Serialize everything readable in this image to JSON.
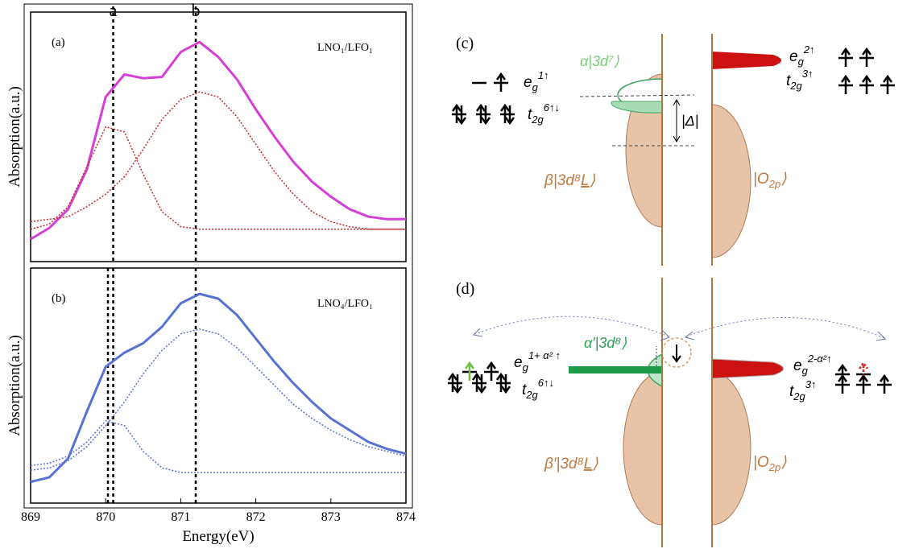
{
  "chart_data": [
    {
      "type": "line",
      "panel_label": "(a)",
      "annotation": "LNO₁/LFO₁",
      "ylabel": "Absorption(a.u.)",
      "x": [
        869,
        869.25,
        869.5,
        869.75,
        870,
        870.25,
        870.5,
        870.75,
        871,
        871.25,
        871.5,
        871.75,
        872,
        872.25,
        872.5,
        872.75,
        873,
        873.25,
        873.5,
        873.75,
        874
      ],
      "xlim": [
        869,
        874
      ],
      "ylim": [
        0,
        1
      ],
      "series": [
        {
          "color": "#d43fd6",
          "line_style": "solid",
          "values": [
            0.09,
            0.135,
            0.21,
            0.37,
            0.66,
            0.75,
            0.735,
            0.74,
            0.84,
            0.88,
            0.82,
            0.73,
            0.61,
            0.5,
            0.4,
            0.32,
            0.26,
            0.21,
            0.18,
            0.17,
            0.17
          ]
        },
        {
          "color": "#c0282a",
          "line_style": "dotted",
          "values": [
            0.13,
            0.15,
            0.22,
            0.38,
            0.54,
            0.52,
            0.35,
            0.2,
            0.14,
            0.13,
            0.13,
            0.13,
            0.13,
            0.13,
            0.13,
            0.13,
            0.13,
            0.13,
            0.13,
            0.13,
            0.13
          ]
        },
        {
          "color": "#c0282a",
          "line_style": "dotted",
          "values": [
            0.16,
            0.17,
            0.18,
            0.22,
            0.27,
            0.34,
            0.45,
            0.57,
            0.65,
            0.68,
            0.66,
            0.58,
            0.47,
            0.36,
            0.27,
            0.2,
            0.16,
            0.14,
            0.13,
            0.13,
            0.13
          ]
        }
      ],
      "vlines": [
        {
          "value": 870.1,
          "label": "a"
        },
        {
          "value": 871.2,
          "label": "b"
        }
      ]
    },
    {
      "type": "line",
      "panel_label": "(b)",
      "annotation": "LNO₄/LFO₁",
      "ylabel": "Absorption(a.u.)",
      "xlabel": "Energy(eV)",
      "x": [
        869,
        869.25,
        869.5,
        869.75,
        870,
        870.25,
        870.5,
        870.75,
        871,
        871.25,
        871.5,
        871.75,
        872,
        872.25,
        872.5,
        872.75,
        873,
        873.25,
        873.5,
        873.75,
        874
      ],
      "xlim": [
        869,
        874
      ],
      "ylim": [
        0,
        1
      ],
      "xticks": [
        869,
        870,
        871,
        872,
        873,
        874
      ],
      "series": [
        {
          "color": "#5872d4",
          "line_style": "solid",
          "values": [
            0.09,
            0.11,
            0.19,
            0.39,
            0.58,
            0.64,
            0.68,
            0.75,
            0.85,
            0.89,
            0.87,
            0.8,
            0.7,
            0.6,
            0.51,
            0.43,
            0.36,
            0.31,
            0.26,
            0.23,
            0.21
          ]
        },
        {
          "color": "#5b6fd0",
          "line_style": "dotted",
          "values": [
            0.16,
            0.17,
            0.2,
            0.26,
            0.35,
            0.33,
            0.22,
            0.15,
            0.13,
            0.13,
            0.13,
            0.13,
            0.13,
            0.13,
            0.13,
            0.13,
            0.13,
            0.13,
            0.13,
            0.13,
            0.13
          ]
        },
        {
          "color": "#5b6fd0",
          "line_style": "dotted",
          "values": [
            0.14,
            0.15,
            0.18,
            0.24,
            0.33,
            0.43,
            0.55,
            0.65,
            0.72,
            0.74,
            0.72,
            0.66,
            0.58,
            0.5,
            0.42,
            0.36,
            0.31,
            0.27,
            0.24,
            0.22,
            0.2
          ]
        }
      ],
      "vlines": [
        870.03,
        870.1,
        871.2
      ]
    }
  ],
  "diagrams": {
    "c": {
      "label": "(c)",
      "ground": "α|3d⁷⟩",
      "gap": "|Δ|",
      "ligand": {
        "pre": "β|3d⁸",
        "hole": "L",
        "post": "⟩"
      },
      "oxygen": {
        "pre": "|O",
        "sub": "2p",
        "post": "⟩"
      },
      "left_eg": {
        "base": "e",
        "sub": "g",
        "sup": "1↑"
      },
      "left_t2g": {
        "base": "t",
        "sub": "2g",
        "sup": "6↑↓"
      },
      "right_eg": {
        "base": "e",
        "sub": "g",
        "sup": "2↑"
      },
      "right_t2g": {
        "base": "t",
        "sub": "2g",
        "sup": "3↑"
      }
    },
    "d": {
      "label": "(d)",
      "ground": "α′|3d⁸⟩",
      "ligand": {
        "pre": "β′|3d⁸",
        "hole": "L",
        "post": "⟩"
      },
      "oxygen": {
        "pre": "|O",
        "sub": "2p",
        "post": "⟩"
      },
      "left_eg": {
        "base": "e",
        "sub": "g",
        "sup": "1+ α² ↑"
      },
      "left_t2g": {
        "base": "t",
        "sub": "2g",
        "sup": "6↑↓"
      },
      "right_eg": {
        "base": "e",
        "sub": "g",
        "sup": "2-α²↑"
      },
      "right_t2g": {
        "base": "t",
        "sub": "2g",
        "sup": "3↑"
      }
    }
  }
}
